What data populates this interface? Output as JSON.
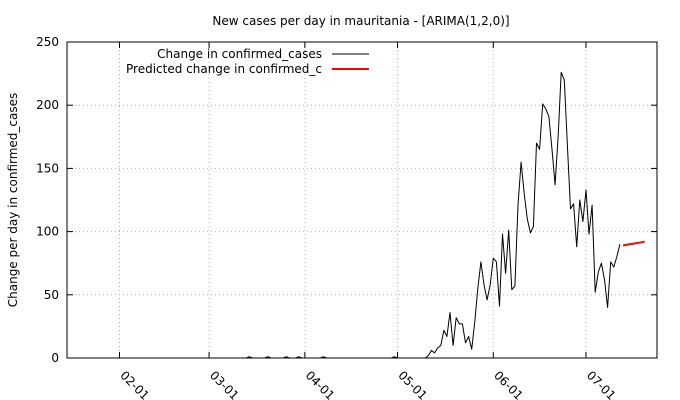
{
  "chart_data": {
    "type": "line",
    "title": "New cases per day in mauritania -  [ARIMA(1,2,0)]",
    "xlabel": "",
    "ylabel": "Change per day in confirmed_cases",
    "ylim": [
      0,
      250
    ],
    "xlim": [
      "2020-01-15",
      "2020-07-24"
    ],
    "y_ticks": [
      0,
      50,
      100,
      150,
      200,
      250
    ],
    "x_ticks": [
      {
        "date": "2020-02-01",
        "label": "02-01"
      },
      {
        "date": "2020-03-01",
        "label": "03-01"
      },
      {
        "date": "2020-04-01",
        "label": "04-01"
      },
      {
        "date": "2020-05-01",
        "label": "05-01"
      },
      {
        "date": "2020-06-01",
        "label": "06-01"
      },
      {
        "date": "2020-07-01",
        "label": "07-01"
      }
    ],
    "grid": true,
    "legend_position": "top-left",
    "series": [
      {
        "name": "Change in confirmed_cases",
        "color": "#000000",
        "points": [
          [
            "2020-01-15",
            0
          ],
          [
            "2020-03-13",
            0
          ],
          [
            "2020-03-14",
            1
          ],
          [
            "2020-03-15",
            0
          ],
          [
            "2020-03-19",
            0
          ],
          [
            "2020-03-20",
            1
          ],
          [
            "2020-03-21",
            0
          ],
          [
            "2020-03-25",
            0
          ],
          [
            "2020-03-26",
            1
          ],
          [
            "2020-03-27",
            0
          ],
          [
            "2020-03-29",
            0
          ],
          [
            "2020-03-30",
            1
          ],
          [
            "2020-03-31",
            0
          ],
          [
            "2020-04-06",
            0
          ],
          [
            "2020-04-07",
            1
          ],
          [
            "2020-04-08",
            0
          ],
          [
            "2020-04-29",
            0
          ],
          [
            "2020-04-30",
            1
          ],
          [
            "2020-05-01",
            0
          ],
          [
            "2020-05-10",
            0
          ],
          [
            "2020-05-11",
            2
          ],
          [
            "2020-05-12",
            6
          ],
          [
            "2020-05-13",
            4
          ],
          [
            "2020-05-14",
            8
          ],
          [
            "2020-05-15",
            10
          ],
          [
            "2020-05-16",
            22
          ],
          [
            "2020-05-17",
            17
          ],
          [
            "2020-05-18",
            36
          ],
          [
            "2020-05-19",
            10
          ],
          [
            "2020-05-20",
            32
          ],
          [
            "2020-05-21",
            27
          ],
          [
            "2020-05-22",
            27
          ],
          [
            "2020-05-23",
            12
          ],
          [
            "2020-05-24",
            17
          ],
          [
            "2020-05-25",
            7
          ],
          [
            "2020-05-26",
            28
          ],
          [
            "2020-05-27",
            55
          ],
          [
            "2020-05-28",
            76
          ],
          [
            "2020-05-29",
            58
          ],
          [
            "2020-05-30",
            46
          ],
          [
            "2020-05-31",
            58
          ],
          [
            "2020-06-01",
            79
          ],
          [
            "2020-06-02",
            76
          ],
          [
            "2020-06-03",
            41
          ],
          [
            "2020-06-04",
            98
          ],
          [
            "2020-06-05",
            67
          ],
          [
            "2020-06-06",
            101
          ],
          [
            "2020-06-07",
            54
          ],
          [
            "2020-06-08",
            57
          ],
          [
            "2020-06-09",
            121
          ],
          [
            "2020-06-10",
            155
          ],
          [
            "2020-06-11",
            130
          ],
          [
            "2020-06-12",
            110
          ],
          [
            "2020-06-13",
            99
          ],
          [
            "2020-06-14",
            104
          ],
          [
            "2020-06-15",
            170
          ],
          [
            "2020-06-16",
            165
          ],
          [
            "2020-06-17",
            201
          ],
          [
            "2020-06-18",
            197
          ],
          [
            "2020-06-19",
            191
          ],
          [
            "2020-06-20",
            165
          ],
          [
            "2020-06-21",
            137
          ],
          [
            "2020-06-22",
            176
          ],
          [
            "2020-06-23",
            226
          ],
          [
            "2020-06-24",
            220
          ],
          [
            "2020-06-25",
            168
          ],
          [
            "2020-06-26",
            118
          ],
          [
            "2020-06-27",
            122
          ],
          [
            "2020-06-28",
            88
          ],
          [
            "2020-06-29",
            125
          ],
          [
            "2020-06-30",
            108
          ],
          [
            "2020-07-01",
            133
          ],
          [
            "2020-07-02",
            98
          ],
          [
            "2020-07-03",
            121
          ],
          [
            "2020-07-04",
            52
          ],
          [
            "2020-07-05",
            68
          ],
          [
            "2020-07-06",
            75
          ],
          [
            "2020-07-07",
            62
          ],
          [
            "2020-07-08",
            40
          ],
          [
            "2020-07-09",
            76
          ],
          [
            "2020-07-10",
            72
          ],
          [
            "2020-07-11",
            80
          ],
          [
            "2020-07-12",
            90
          ]
        ]
      },
      {
        "name": "Predicted change in confirmed_c",
        "color": "#ff0000",
        "points": [
          [
            "2020-07-13",
            89
          ],
          [
            "2020-07-14",
            89.5
          ],
          [
            "2020-07-15",
            90
          ],
          [
            "2020-07-16",
            90.3
          ],
          [
            "2020-07-17",
            90.7
          ],
          [
            "2020-07-18",
            91.1
          ],
          [
            "2020-07-19",
            91.5
          ],
          [
            "2020-07-20",
            92
          ]
        ]
      }
    ]
  }
}
